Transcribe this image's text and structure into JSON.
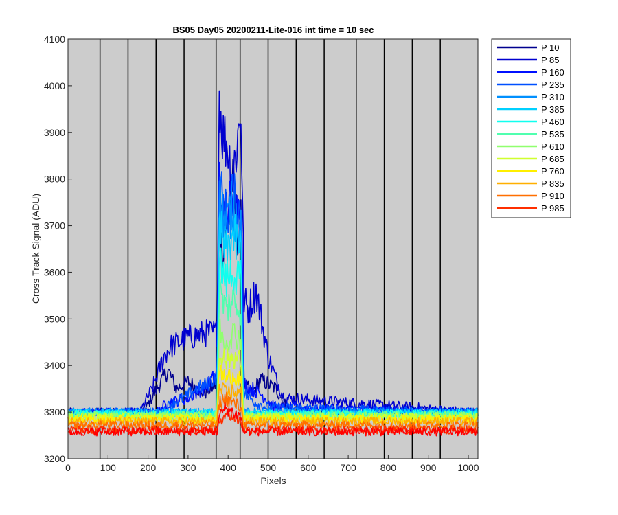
{
  "chart_data": {
    "type": "line",
    "title": "BS05 Day05 20200211-Lite-016 int time = 10 sec",
    "xlabel": "Pixels",
    "ylabel": "Cross Track Signal (ADU)",
    "xlim": [
      0,
      1024
    ],
    "ylim": [
      3200,
      4100
    ],
    "xticks": [
      "0",
      "100",
      "200",
      "300",
      "400",
      "500",
      "600",
      "700",
      "800",
      "900",
      "1000"
    ],
    "yticks": [
      "3200",
      "3300",
      "3400",
      "3500",
      "3600",
      "3700",
      "3800",
      "3900",
      "4000",
      "4100"
    ],
    "background_color": "#cccccc",
    "vertical_divider_lines_x": [
      80,
      150,
      220,
      290,
      370,
      430,
      500,
      570,
      640,
      720,
      790,
      860,
      930
    ],
    "legend_position": "outside-top-right",
    "series": [
      {
        "name": "P 10",
        "color": "#00008f",
        "baseline": 3300,
        "x": [
          0,
          190,
          215,
          250,
          270,
          300,
          340,
          372,
          378,
          385,
          400,
          410,
          425,
          432,
          440,
          460,
          480,
          500,
          520,
          540,
          560,
          1024
        ],
        "y": [
          3300,
          3300,
          3340,
          3390,
          3350,
          3365,
          3340,
          3360,
          3750,
          3640,
          3700,
          3800,
          3680,
          3700,
          3360,
          3340,
          3370,
          3360,
          3350,
          3320,
          3300,
          3300
        ]
      },
      {
        "name": "P 85",
        "color": "#0000cf",
        "baseline": 3300,
        "x": [
          0,
          180,
          210,
          240,
          255,
          300,
          350,
          372,
          378,
          385,
          400,
          410,
          420,
          432,
          440,
          450,
          470,
          500,
          520,
          540,
          1024
        ],
        "y": [
          3300,
          3300,
          3350,
          3420,
          3440,
          3460,
          3470,
          3470,
          3990,
          3900,
          3870,
          3800,
          3860,
          3950,
          3540,
          3520,
          3560,
          3420,
          3370,
          3330,
          3300
        ]
      },
      {
        "name": "P 160",
        "color": "#0010ff",
        "baseline": 3300,
        "x": [
          0,
          220,
          250,
          300,
          350,
          372,
          378,
          390,
          400,
          420,
          432,
          440,
          480,
          520,
          1024
        ],
        "y": [
          3300,
          3300,
          3320,
          3330,
          3360,
          3380,
          3800,
          3700,
          3750,
          3720,
          3780,
          3360,
          3340,
          3310,
          3300
        ]
      },
      {
        "name": "P 235",
        "color": "#0050ff",
        "baseline": 3300,
        "x": [
          0,
          230,
          260,
          290,
          320,
          350,
          372,
          378,
          395,
          410,
          432,
          440,
          470,
          500,
          1024
        ],
        "y": [
          3300,
          3300,
          3320,
          3330,
          3350,
          3360,
          3380,
          3780,
          3720,
          3760,
          3720,
          3340,
          3320,
          3310,
          3300
        ]
      },
      {
        "name": "P 310",
        "color": "#0090ff",
        "baseline": 3300,
        "x": [
          0,
          372,
          378,
          395,
          410,
          432,
          438,
          1024
        ],
        "y": [
          3300,
          3300,
          3760,
          3700,
          3740,
          3700,
          3300,
          3300
        ]
      },
      {
        "name": "P 385",
        "color": "#00d0ff",
        "baseline": 3298,
        "x": [
          0,
          372,
          378,
          395,
          410,
          432,
          438,
          1024
        ],
        "y": [
          3298,
          3298,
          3700,
          3640,
          3680,
          3650,
          3298,
          3298
        ]
      },
      {
        "name": "P 460",
        "color": "#10ffef",
        "baseline": 3296,
        "x": [
          0,
          372,
          378,
          395,
          410,
          432,
          438,
          1024
        ],
        "y": [
          3296,
          3296,
          3620,
          3580,
          3600,
          3580,
          3296,
          3296
        ]
      },
      {
        "name": "P 535",
        "color": "#50ffaf",
        "baseline": 3294,
        "x": [
          0,
          372,
          378,
          395,
          410,
          432,
          438,
          1024
        ],
        "y": [
          3294,
          3294,
          3560,
          3520,
          3540,
          3520,
          3294,
          3294
        ]
      },
      {
        "name": "P 610",
        "color": "#90ff6f",
        "baseline": 3292,
        "x": [
          0,
          372,
          378,
          395,
          410,
          432,
          438,
          1024
        ],
        "y": [
          3292,
          3292,
          3480,
          3450,
          3470,
          3460,
          3292,
          3292
        ]
      },
      {
        "name": "P 685",
        "color": "#d0ff2f",
        "baseline": 3289,
        "x": [
          0,
          372,
          378,
          395,
          410,
          432,
          438,
          1024
        ],
        "y": [
          3289,
          3289,
          3430,
          3410,
          3420,
          3410,
          3289,
          3289
        ]
      },
      {
        "name": "P 760",
        "color": "#ffef00",
        "baseline": 3285,
        "x": [
          0,
          372,
          378,
          395,
          410,
          432,
          438,
          1024
        ],
        "y": [
          3285,
          3285,
          3390,
          3370,
          3380,
          3370,
          3285,
          3285
        ]
      },
      {
        "name": "P 835",
        "color": "#ffaf00",
        "baseline": 3280,
        "x": [
          0,
          372,
          378,
          395,
          410,
          432,
          438,
          1024
        ],
        "y": [
          3280,
          3280,
          3350,
          3340,
          3345,
          3340,
          3280,
          3280
        ]
      },
      {
        "name": "P 910",
        "color": "#ff6f00",
        "baseline": 3272,
        "x": [
          0,
          372,
          378,
          395,
          410,
          432,
          438,
          1024
        ],
        "y": [
          3272,
          3272,
          3320,
          3330,
          3320,
          3310,
          3272,
          3272
        ]
      },
      {
        "name": "P 985",
        "color": "#ff2f00",
        "baseline": 3262,
        "x": [
          0,
          372,
          378,
          395,
          410,
          432,
          438,
          1024
        ],
        "y": [
          3262,
          3262,
          3280,
          3300,
          3290,
          3280,
          3262,
          3262
        ]
      },
      {
        "name": "",
        "color": "#ff0000",
        "baseline": 3258,
        "x": [
          0,
          372,
          378,
          395,
          410,
          432,
          438,
          1024
        ],
        "y": [
          3258,
          3258,
          3290,
          3310,
          3300,
          3290,
          3258,
          3258
        ]
      }
    ]
  }
}
